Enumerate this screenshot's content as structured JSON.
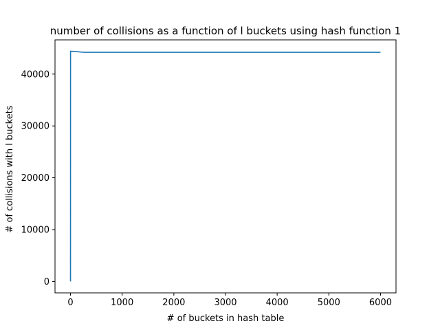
{
  "chart_data": {
    "type": "line",
    "title": "number of collisions as a function of l buckets using hash function 1",
    "xlabel": "# of buckets in hash table",
    "ylabel": "# of collisions with l buckets",
    "xlim": [
      -300,
      6300
    ],
    "ylim": [
      -2200,
      46600
    ],
    "xticks": [
      0,
      1000,
      2000,
      3000,
      4000,
      5000,
      6000
    ],
    "yticks": [
      0,
      10000,
      20000,
      30000,
      40000
    ],
    "grid": false,
    "legend": "none",
    "series": [
      {
        "color": "#1f77b4",
        "x": [
          0,
          1,
          10,
          50,
          100,
          150,
          200,
          250,
          300,
          500,
          1000,
          2000,
          3000,
          4000,
          5000,
          6000
        ],
        "y": [
          0,
          44400,
          44400,
          44390,
          44350,
          44300,
          44250,
          44220,
          44200,
          44200,
          44200,
          44200,
          44200,
          44200,
          44200,
          44200
        ]
      }
    ]
  }
}
